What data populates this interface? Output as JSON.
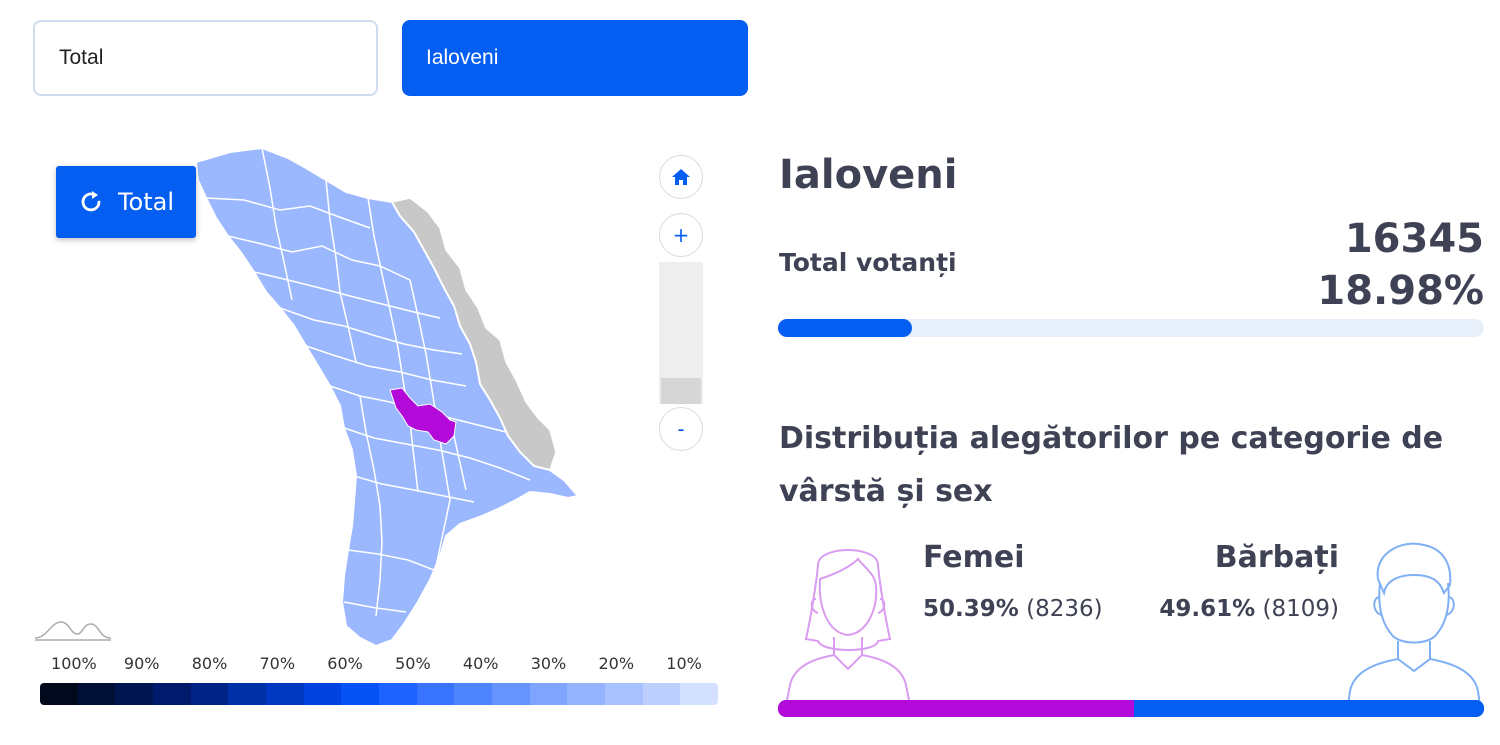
{
  "selector": {
    "total_label": "Total",
    "district_label": "Ialoveni"
  },
  "map": {
    "reset_label": "Total",
    "zoom_in_label": "+",
    "zoom_out_label": "-",
    "highlight_color": "#b30ad9",
    "district_color": "#9bb8ff",
    "transnistria_color": "#c8c8c8",
    "border_color": "#ffffff"
  },
  "legend": {
    "labels": [
      "100%",
      "90%",
      "80%",
      "70%",
      "60%",
      "50%",
      "40%",
      "30%",
      "20%",
      "10%"
    ],
    "colors": [
      "#000a1c",
      "#000f34",
      "#001650",
      "#001b6b",
      "#002386",
      "#0030a7",
      "#0038c2",
      "#0043e0",
      "#0553f5",
      "#1d63ff",
      "#3874ff",
      "#4f84ff",
      "#6793ff",
      "#7fa4ff",
      "#95b3ff",
      "#a8c2ff",
      "#bccfff",
      "#d3e0ff"
    ]
  },
  "district": {
    "name": "Ialoveni",
    "voters_label": "Total votanți",
    "voters_count": "16345",
    "voters_pct": "18.98%",
    "voters_fraction": 0.1898
  },
  "distribution": {
    "title": "Distribuția alegătorilor pe categorie de vârstă și sex",
    "female_label": "Femei",
    "female_pct": "50.39%",
    "female_count": "(8236)",
    "female_fraction": 0.5039,
    "female_color": "#b30ad9",
    "male_label": "Bărbați",
    "male_pct": "49.61%",
    "male_count": "(8109)",
    "male_color": "#045ef2"
  }
}
